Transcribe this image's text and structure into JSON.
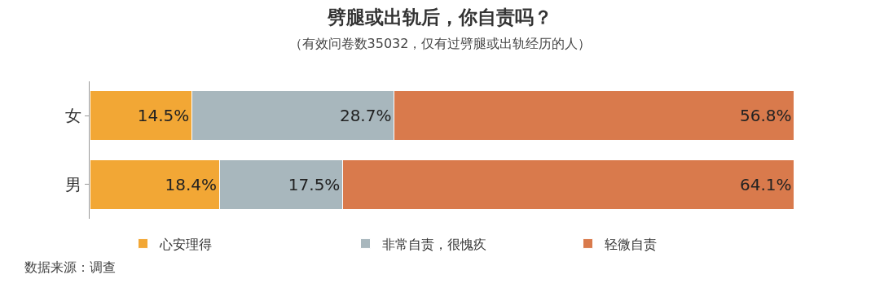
{
  "chart_data": {
    "type": "bar",
    "orientation": "horizontal",
    "stacked": true,
    "title": "劈腿或出轨后，你自责吗？",
    "subtitle": "（有效问卷数35032，仅有过劈腿或出轨经历的人）",
    "categories": [
      "女",
      "男"
    ],
    "series": [
      {
        "name": "心安理得",
        "color": "#f2a735",
        "values": [
          14.5,
          18.4
        ],
        "value_labels": [
          "14.5%",
          "18.4%"
        ]
      },
      {
        "name": "非常自责，很愧疚",
        "color": "#a8b7bd",
        "values": [
          28.7,
          17.5
        ],
        "value_labels": [
          "28.7%",
          "17.5%"
        ]
      },
      {
        "name": "轻微自责",
        "color": "#d97a4c",
        "values": [
          56.8,
          64.1
        ],
        "value_labels": [
          "56.8%",
          "64.1%"
        ]
      }
    ],
    "legend": "bottom",
    "tick_labels": "y",
    "annotations": [
      "数据来源：调查"
    ]
  }
}
